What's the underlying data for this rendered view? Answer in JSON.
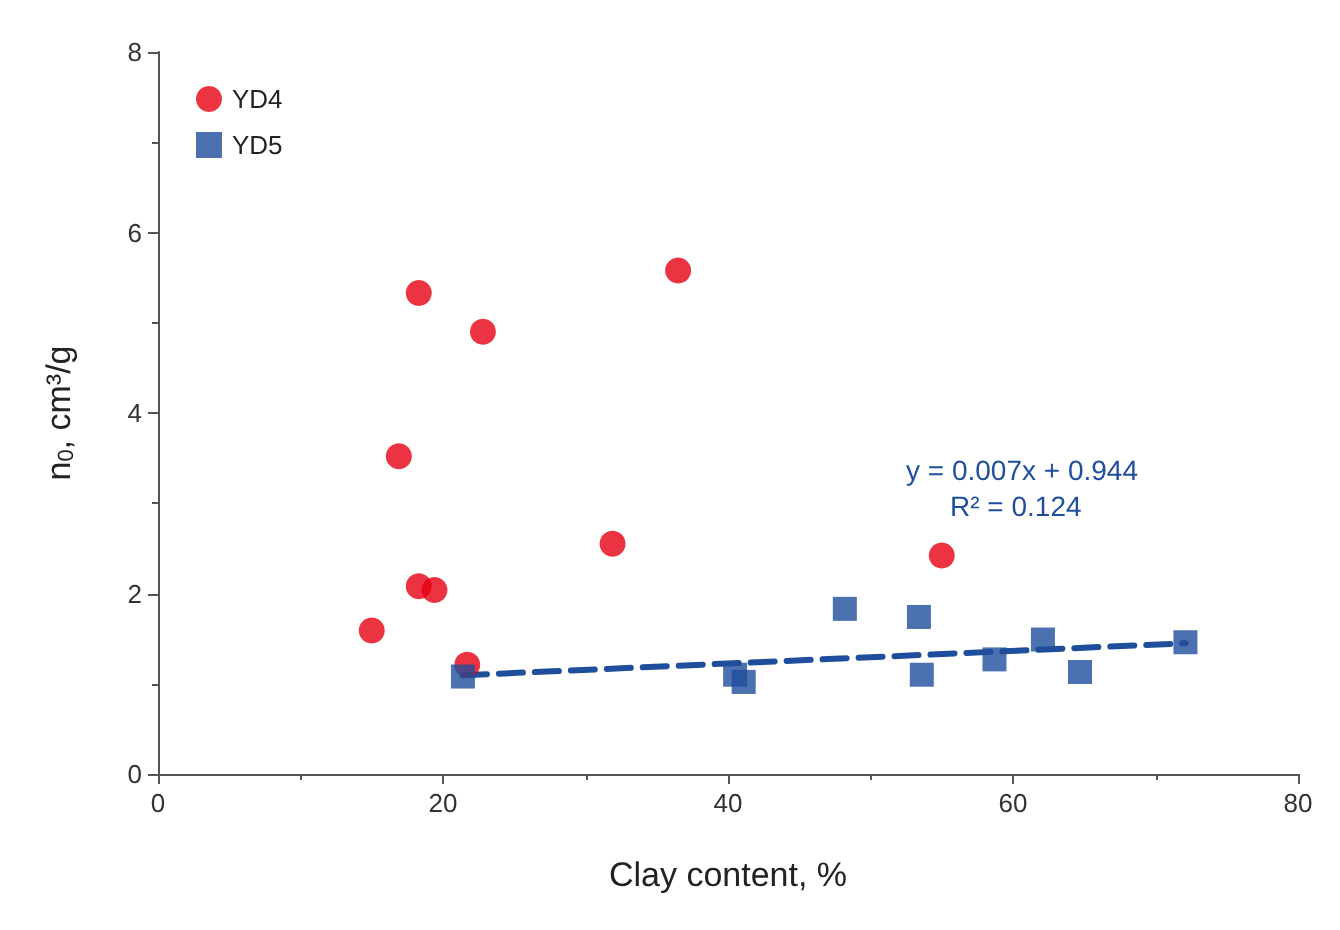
{
  "chart_data": {
    "type": "scatter",
    "xlabel": "Clay content, %",
    "ylabel": "n$_{0}$, cm³/g",
    "xlim": [
      0,
      80
    ],
    "xticks": [
      0,
      20,
      40,
      60,
      80
    ],
    "ylim": [
      0,
      8
    ],
    "yticks": [
      0,
      2,
      4,
      6,
      8
    ],
    "grid": false,
    "legend": "top left",
    "annotations": [
      "y = 0.007x + 0.944",
      "R² = 0.124"
    ],
    "series": [
      {
        "name": "YD4",
        "color": "#e60012",
        "marker": "circle",
        "x": [
          15.0,
          16.9,
          18.3,
          18.3,
          19.4,
          21.7,
          22.8,
          31.9,
          36.5,
          55.0
        ],
        "values": [
          1.59,
          3.52,
          5.33,
          2.08,
          2.04,
          1.21,
          4.9,
          2.55,
          5.58,
          2.42
        ]
      },
      {
        "name": "YD5",
        "color": "#1f4e9c",
        "marker": "square",
        "x": [
          21.4,
          40.5,
          41.1,
          48.2,
          53.4,
          53.6,
          58.7,
          62.1,
          64.7,
          72.1
        ],
        "values": [
          1.08,
          1.1,
          1.02,
          1.83,
          1.74,
          1.1,
          1.27,
          1.49,
          1.13,
          1.46
        ]
      },
      {
        "type": "line",
        "color": "#1f4e9c",
        "line_style": "dashed",
        "marker": "none",
        "x": [
          21.4,
          72.1
        ],
        "values": [
          1.094,
          1.449
        ]
      }
    ]
  }
}
